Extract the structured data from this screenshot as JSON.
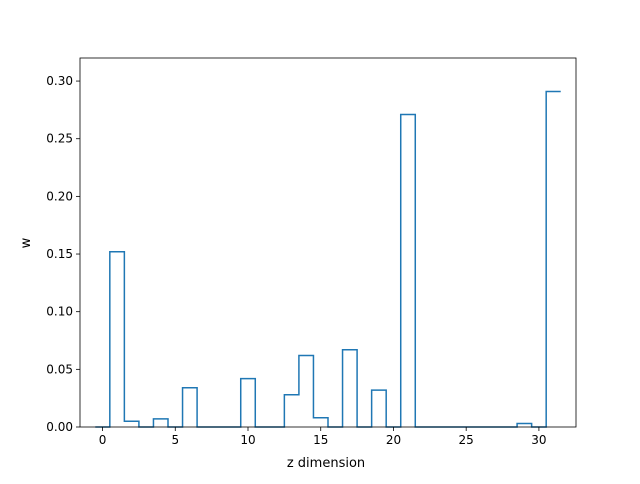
{
  "chart_data": {
    "type": "step",
    "title": "",
    "xlabel": "z dimension",
    "ylabel": "w",
    "xlim": [
      -1.55,
      32.55
    ],
    "ylim": [
      0,
      0.32
    ],
    "xticks": [
      0,
      5,
      10,
      15,
      20,
      25,
      30
    ],
    "yticks": [
      0.0,
      0.05,
      0.1,
      0.15,
      0.2,
      0.25,
      0.3
    ],
    "xtick_labels": [
      "0",
      "5",
      "10",
      "15",
      "20",
      "25",
      "30"
    ],
    "ytick_labels": [
      "0.00",
      "0.05",
      "0.10",
      "0.15",
      "0.20",
      "0.25",
      "0.30"
    ],
    "grid": false,
    "line_color": "#1f77b4",
    "series": [
      {
        "x": [
          0,
          1,
          2,
          3,
          4,
          5,
          6,
          7,
          8,
          9,
          10,
          11,
          12,
          13,
          14,
          15,
          16,
          17,
          18,
          19,
          20,
          21,
          22,
          23,
          24,
          25,
          26,
          27,
          28,
          29,
          30,
          31
        ],
        "values": [
          0.0,
          0.152,
          0.005,
          0.0,
          0.007,
          0.0,
          0.034,
          0.0,
          0.0,
          0.0,
          0.042,
          0.0,
          0.0,
          0.028,
          0.062,
          0.008,
          0.0,
          0.067,
          0.0,
          0.032,
          0.0,
          0.271,
          0.0,
          0.0,
          0.0,
          0.0,
          0.0,
          0.0,
          0.0,
          0.003,
          0.0,
          0.291
        ]
      }
    ]
  }
}
